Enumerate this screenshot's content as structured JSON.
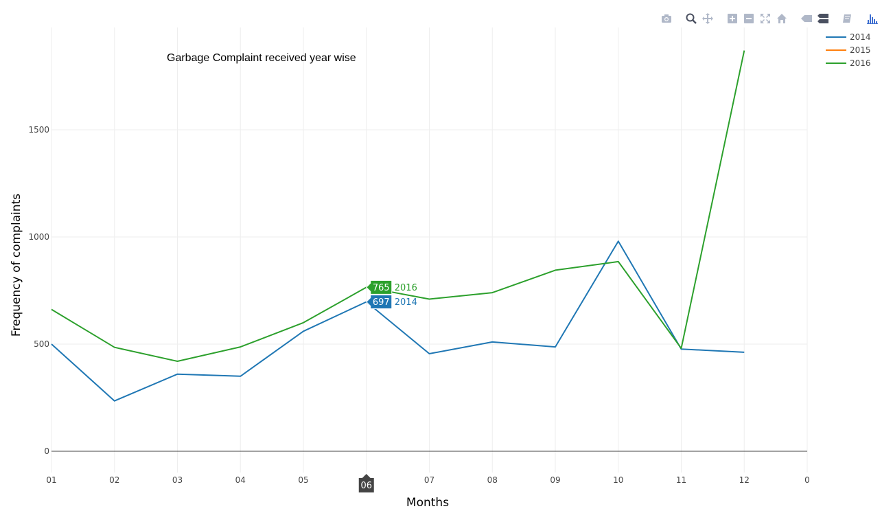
{
  "chart_data": {
    "type": "line",
    "title": "Garbage Complaint received year wise",
    "xlabel": "Months",
    "ylabel": "Frequency of complaints",
    "x_tick_labels": [
      "01",
      "02",
      "03",
      "04",
      "05",
      "06",
      "07",
      "08",
      "09",
      "10",
      "11",
      "12",
      "0"
    ],
    "y_ticks": [
      0,
      500,
      1000,
      1500
    ],
    "ylim": [
      -100,
      2000
    ],
    "grid": true,
    "legend_position": "top-right",
    "series": [
      {
        "name": "2014",
        "color": "#1f77b4",
        "values": [
          500,
          235,
          360,
          350,
          560,
          697,
          455,
          510,
          487,
          980,
          477,
          462
        ]
      },
      {
        "name": "2015",
        "color": "#ff7f0e",
        "values": []
      },
      {
        "name": "2016",
        "color": "#2ca02c",
        "values": [
          662,
          485,
          420,
          487,
          600,
          765,
          710,
          740,
          845,
          885,
          480,
          1870
        ]
      }
    ],
    "hover": {
      "x_label": "06",
      "items": [
        {
          "value": "765",
          "series": "2016",
          "color": "#2ca02c",
          "y": 765
        },
        {
          "value": "697",
          "series": "2014",
          "color": "#1f77b4",
          "y": 697
        }
      ]
    }
  },
  "modebar": {
    "buttons": [
      "camera-icon",
      "zoom-icon",
      "pan-icon",
      "zoom-in-icon",
      "zoom-out-icon",
      "autoscale-icon",
      "reset-axes-icon",
      "hover-closest-icon",
      "hover-compare-icon",
      "edit-icon",
      "plotly-logo-icon"
    ],
    "icon_color": "#b0b8c8",
    "logo_color": "#3f6fd0"
  }
}
